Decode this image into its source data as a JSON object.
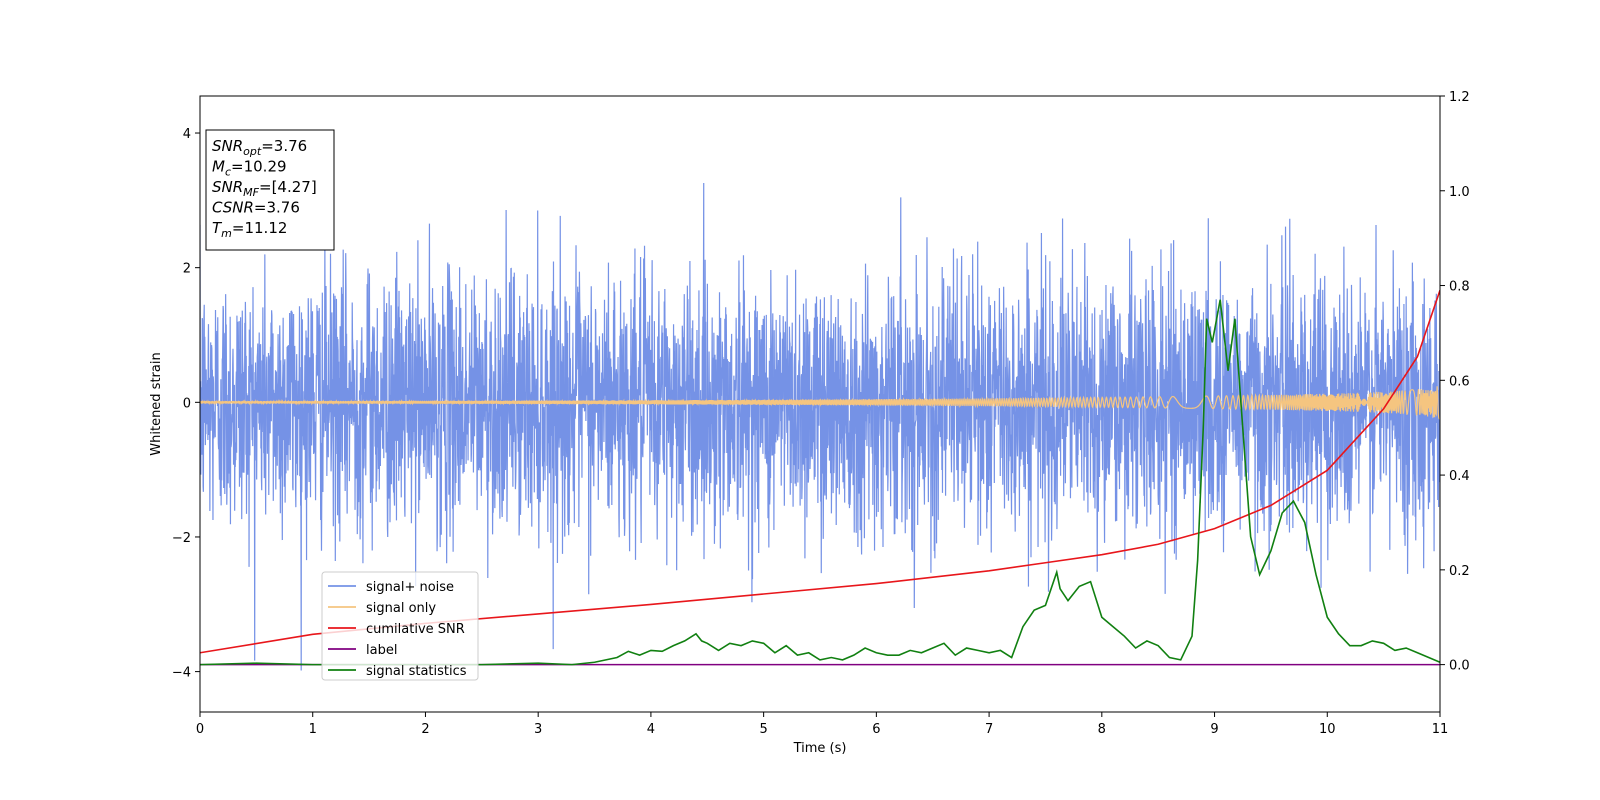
{
  "chart_data": {
    "type": "line",
    "title": "",
    "xlabel": "Time (s)",
    "ylabel": "Whitened strain",
    "xlim": [
      0,
      11
    ],
    "ylim_left": [
      -4.6,
      4.55
    ],
    "ylim_right": [
      -0.1,
      1.2
    ],
    "x_ticks": [
      0,
      1,
      2,
      3,
      4,
      5,
      6,
      7,
      8,
      9,
      10,
      11
    ],
    "x_tick_labels": [
      "0",
      "1",
      "2",
      "3",
      "4",
      "5",
      "6",
      "7",
      "8",
      "9",
      "10",
      "11"
    ],
    "y_ticks_left": [
      -4,
      -2,
      0,
      2,
      4
    ],
    "y_tick_labels_left": [
      "−4",
      "−2",
      "0",
      "2",
      "4"
    ],
    "y_ticks_right": [
      0.0,
      0.2,
      0.4,
      0.6,
      0.8,
      1.0,
      1.2
    ],
    "y_tick_labels_right": [
      "0.0",
      "0.2",
      "0.4",
      "0.6",
      "0.8",
      "1.0",
      "1.2"
    ],
    "grid": false,
    "legend_position": "lower-left",
    "annotation": {
      "lines": [
        {
          "base": "SNR",
          "sub": "opt",
          "value": "=3.76"
        },
        {
          "base": "M",
          "sub": "c",
          "value": "=10.29"
        },
        {
          "base": "SNR",
          "sub": "MF",
          "value": "=[4.27]"
        },
        {
          "base": "CSNR",
          "sub": "",
          "value": "=3.76"
        },
        {
          "base": "T",
          "sub": "m",
          "value": "=11.12"
        }
      ]
    },
    "series": [
      {
        "name": "signal+ noise",
        "axis": "left",
        "color": "#7592e6",
        "kind": "noise",
        "std": 0.95,
        "peak_max": 4.12,
        "peak_min": -4.15
      },
      {
        "name": "signal only",
        "axis": "left",
        "color": "#f5c580",
        "kind": "chirp",
        "amplitude_start": 0.02,
        "amplitude_end": 0.25
      },
      {
        "name": "cumilative SNR",
        "axis": "right",
        "color": "#e8161b",
        "x": [
          0,
          1,
          2,
          3,
          4,
          5,
          6,
          7,
          7.5,
          8,
          8.5,
          9,
          9.5,
          10,
          10.5,
          10.8,
          11
        ],
        "y": [
          0.025,
          0.064,
          0.087,
          0.107,
          0.127,
          0.149,
          0.171,
          0.198,
          0.215,
          0.232,
          0.254,
          0.287,
          0.336,
          0.41,
          0.54,
          0.65,
          0.79
        ]
      },
      {
        "name": "label",
        "axis": "right",
        "color": "#800080",
        "x": [
          0,
          11
        ],
        "y": [
          0.0,
          0.0
        ]
      },
      {
        "name": "signal statistics",
        "axis": "right",
        "color": "#118011",
        "x": [
          0,
          0.5,
          1,
          1.5,
          2,
          2.5,
          3,
          3.3,
          3.5,
          3.7,
          3.8,
          3.9,
          4.0,
          4.1,
          4.2,
          4.3,
          4.4,
          4.45,
          4.5,
          4.6,
          4.7,
          4.8,
          4.9,
          5.0,
          5.1,
          5.2,
          5.3,
          5.4,
          5.5,
          5.6,
          5.7,
          5.8,
          5.9,
          6.0,
          6.1,
          6.2,
          6.3,
          6.4,
          6.5,
          6.6,
          6.7,
          6.8,
          6.9,
          7.0,
          7.1,
          7.2,
          7.3,
          7.4,
          7.5,
          7.6,
          7.63,
          7.7,
          7.8,
          7.9,
          8.0,
          8.1,
          8.2,
          8.3,
          8.4,
          8.5,
          8.6,
          8.7,
          8.8,
          8.85,
          8.9,
          8.93,
          8.98,
          9.05,
          9.12,
          9.18,
          9.25,
          9.32,
          9.4,
          9.5,
          9.6,
          9.7,
          9.8,
          9.9,
          10.0,
          10.1,
          10.2,
          10.3,
          10.4,
          10.5,
          10.6,
          10.7,
          10.8,
          11.0
        ],
        "y": [
          0.0,
          0.003,
          0.0,
          0.0,
          0.0,
          0.0,
          0.003,
          0.0,
          0.005,
          0.015,
          0.028,
          0.02,
          0.03,
          0.028,
          0.04,
          0.05,
          0.065,
          0.05,
          0.045,
          0.03,
          0.045,
          0.04,
          0.05,
          0.045,
          0.025,
          0.04,
          0.02,
          0.025,
          0.01,
          0.015,
          0.01,
          0.02,
          0.035,
          0.025,
          0.02,
          0.02,
          0.03,
          0.025,
          0.035,
          0.045,
          0.02,
          0.035,
          0.03,
          0.025,
          0.03,
          0.015,
          0.08,
          0.115,
          0.125,
          0.195,
          0.16,
          0.135,
          0.165,
          0.175,
          0.1,
          0.08,
          0.06,
          0.035,
          0.05,
          0.04,
          0.015,
          0.01,
          0.06,
          0.22,
          0.5,
          0.73,
          0.68,
          0.77,
          0.62,
          0.73,
          0.5,
          0.27,
          0.19,
          0.24,
          0.32,
          0.345,
          0.3,
          0.19,
          0.1,
          0.065,
          0.04,
          0.04,
          0.05,
          0.045,
          0.03,
          0.035,
          0.025,
          0.005
        ]
      }
    ]
  }
}
